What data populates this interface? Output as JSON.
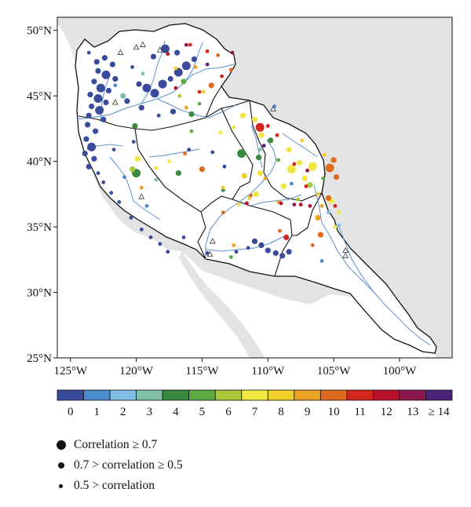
{
  "map": {
    "lat_labels": [
      "50°N",
      "45°N",
      "40°N",
      "35°N",
      "30°N",
      "25°N"
    ],
    "lon_labels": [
      "125°W",
      "120°W",
      "115°W",
      "110°W",
      "105°W",
      "100°W"
    ],
    "lat_values": [
      50,
      45,
      40,
      35,
      30,
      25
    ],
    "lon_values": [
      -125,
      -120,
      -115,
      -110,
      -105,
      -100
    ],
    "extent": {
      "lon": [
        -126,
        -96
      ],
      "lat": [
        25,
        51
      ]
    },
    "colors": {
      "land_outside": "#e3e3e3",
      "ocean": "#ffffff",
      "basin_fill": "#ffffff",
      "basin_outline": "#111111",
      "river": "#5a8fd0"
    }
  },
  "colorbar": {
    "labels": [
      "0",
      "1",
      "2",
      "3",
      "4",
      "5",
      "6",
      "7",
      "8",
      "9",
      "10",
      "11",
      "12",
      "13",
      "≥ 14"
    ],
    "colors": [
      "#3a4b9c",
      "#4a8ccc",
      "#7fbde5",
      "#80bfa6",
      "#3a8a3e",
      "#5cac45",
      "#a8c83a",
      "#f2e640",
      "#f0cf2a",
      "#eaa323",
      "#e06b1e",
      "#d3261c",
      "#b8102a",
      "#8d1850",
      "#4b237a"
    ]
  },
  "legend": {
    "items": [
      {
        "label": "Correlation ≥ 0.7",
        "size": "large"
      },
      {
        "label": "0.7 > correlation ≥ 0.5",
        "size": "medium"
      },
      {
        "label": "0.5 > correlation",
        "size": "small"
      }
    ]
  },
  "chart_data": {
    "type": "scatter",
    "title": "",
    "xlabel": "",
    "ylabel": "",
    "xlim": [
      -126,
      -96
    ],
    "ylim": [
      25,
      51
    ],
    "points": [
      {
        "x": -123.6,
        "y": 48.3,
        "class": 0,
        "size": "small"
      },
      {
        "x": -123.0,
        "y": 47.6,
        "class": 0,
        "size": "medium"
      },
      {
        "x": -122.4,
        "y": 47.9,
        "class": 0,
        "size": "medium"
      },
      {
        "x": -121.8,
        "y": 47.4,
        "class": 0,
        "size": "medium"
      },
      {
        "x": -122.9,
        "y": 46.9,
        "class": 0,
        "size": "medium"
      },
      {
        "x": -122.3,
        "y": 46.6,
        "class": 0,
        "size": "large"
      },
      {
        "x": -121.6,
        "y": 46.3,
        "class": 0,
        "size": "medium"
      },
      {
        "x": -123.2,
        "y": 46.1,
        "class": 0,
        "size": "medium"
      },
      {
        "x": -122.7,
        "y": 45.6,
        "class": 0,
        "size": "large"
      },
      {
        "x": -122.1,
        "y": 45.4,
        "class": 0,
        "size": "medium"
      },
      {
        "x": -123.5,
        "y": 45.1,
        "class": 0,
        "size": "medium"
      },
      {
        "x": -122.9,
        "y": 44.8,
        "class": 0,
        "size": "large"
      },
      {
        "x": -122.3,
        "y": 44.5,
        "class": 0,
        "size": "medium"
      },
      {
        "x": -123.4,
        "y": 44.2,
        "class": 0,
        "size": "medium"
      },
      {
        "x": -122.8,
        "y": 43.9,
        "class": 0,
        "size": "large"
      },
      {
        "x": -123.6,
        "y": 43.5,
        "class": 0,
        "size": "medium"
      },
      {
        "x": -122.5,
        "y": 43.2,
        "class": 0,
        "size": "medium"
      },
      {
        "x": -123.7,
        "y": 42.8,
        "class": 0,
        "size": "medium"
      },
      {
        "x": -123.1,
        "y": 42.3,
        "class": 0,
        "size": "medium"
      },
      {
        "x": -123.8,
        "y": 41.7,
        "class": 0,
        "size": "medium"
      },
      {
        "x": -123.4,
        "y": 41.1,
        "class": 0,
        "size": "large"
      },
      {
        "x": -123.9,
        "y": 40.6,
        "class": 0,
        "size": "medium"
      },
      {
        "x": -123.2,
        "y": 40.2,
        "class": 0,
        "size": "medium"
      },
      {
        "x": -123.6,
        "y": 39.6,
        "class": 0,
        "size": "medium"
      },
      {
        "x": -122.9,
        "y": 39.1,
        "class": 0,
        "size": "small"
      },
      {
        "x": -122.5,
        "y": 38.4,
        "class": 0,
        "size": "small"
      },
      {
        "x": -121.9,
        "y": 37.6,
        "class": 0,
        "size": "small"
      },
      {
        "x": -121.3,
        "y": 36.9,
        "class": 0,
        "size": "small"
      },
      {
        "x": -120.4,
        "y": 35.7,
        "class": 0,
        "size": "small"
      },
      {
        "x": -119.6,
        "y": 34.8,
        "class": 0,
        "size": "small"
      },
      {
        "x": -118.9,
        "y": 34.2,
        "class": 0,
        "size": "small"
      },
      {
        "x": -118.2,
        "y": 33.7,
        "class": 0,
        "size": "small"
      },
      {
        "x": -117.6,
        "y": 33.1,
        "class": 0,
        "size": "small"
      },
      {
        "x": -119.8,
        "y": 45.9,
        "class": 0,
        "size": "medium"
      },
      {
        "x": -119.2,
        "y": 45.6,
        "class": 0,
        "size": "large"
      },
      {
        "x": -118.6,
        "y": 45.2,
        "class": 0,
        "size": "large"
      },
      {
        "x": -118.0,
        "y": 45.9,
        "class": 0,
        "size": "large"
      },
      {
        "x": -117.4,
        "y": 46.3,
        "class": 0,
        "size": "medium"
      },
      {
        "x": -116.8,
        "y": 46.8,
        "class": 0,
        "size": "large"
      },
      {
        "x": -116.2,
        "y": 47.3,
        "class": 0,
        "size": "large"
      },
      {
        "x": -115.6,
        "y": 47.8,
        "class": 0,
        "size": "medium"
      },
      {
        "x": -116.9,
        "y": 48.3,
        "class": 0,
        "size": "medium"
      },
      {
        "x": -117.8,
        "y": 48.6,
        "class": 0,
        "size": "large"
      },
      {
        "x": -118.7,
        "y": 48.0,
        "class": 0,
        "size": "medium"
      },
      {
        "x": -120.3,
        "y": 47.2,
        "class": 0,
        "size": "small"
      },
      {
        "x": -120.7,
        "y": 44.6,
        "class": 0,
        "size": "medium"
      },
      {
        "x": -119.6,
        "y": 44.1,
        "class": 0,
        "size": "medium"
      },
      {
        "x": -118.3,
        "y": 43.5,
        "class": 0,
        "size": "small"
      },
      {
        "x": -117.2,
        "y": 43.8,
        "class": 0,
        "size": "medium"
      },
      {
        "x": -111.0,
        "y": 33.9,
        "class": 0,
        "size": "medium"
      },
      {
        "x": -110.5,
        "y": 33.6,
        "class": 0,
        "size": "medium"
      },
      {
        "x": -110.0,
        "y": 33.2,
        "class": 0,
        "size": "medium"
      },
      {
        "x": -109.4,
        "y": 33.0,
        "class": 0,
        "size": "medium"
      },
      {
        "x": -108.9,
        "y": 32.8,
        "class": 0,
        "size": "medium"
      },
      {
        "x": -108.4,
        "y": 33.1,
        "class": 0,
        "size": "medium"
      },
      {
        "x": -111.5,
        "y": 33.4,
        "class": 0,
        "size": "small"
      },
      {
        "x": -112.4,
        "y": 33.1,
        "class": 0,
        "size": "small"
      },
      {
        "x": -116.4,
        "y": 34.2,
        "class": 0,
        "size": "small"
      },
      {
        "x": -114.6,
        "y": 33.0,
        "class": 0,
        "size": "small"
      },
      {
        "x": -113.3,
        "y": 39.6,
        "class": 0,
        "size": "small"
      },
      {
        "x": -114.2,
        "y": 40.7,
        "class": 0,
        "size": "small"
      },
      {
        "x": -116.0,
        "y": 40.9,
        "class": 0,
        "size": "small"
      },
      {
        "x": -121.7,
        "y": 40.9,
        "class": 0,
        "size": "small"
      },
      {
        "x": -120.2,
        "y": 41.5,
        "class": 0,
        "size": "small"
      },
      {
        "x": -121.6,
        "y": 45.8,
        "class": 1,
        "size": "small"
      },
      {
        "x": -120.9,
        "y": 38.8,
        "class": 1,
        "size": "small"
      },
      {
        "x": -119.2,
        "y": 36.6,
        "class": 1,
        "size": "small"
      },
      {
        "x": -108.2,
        "y": 38.3,
        "class": 1,
        "size": "small"
      },
      {
        "x": -105.9,
        "y": 32.4,
        "class": 1,
        "size": "small"
      },
      {
        "x": -109.5,
        "y": 44.2,
        "class": 1,
        "size": "small"
      },
      {
        "x": -105.4,
        "y": 36.1,
        "class": 2,
        "size": "small"
      },
      {
        "x": -104.6,
        "y": 35.1,
        "class": 2,
        "size": "small"
      },
      {
        "x": -119.5,
        "y": 46.7,
        "class": 3,
        "size": "small"
      },
      {
        "x": -121.0,
        "y": 45.0,
        "class": 3,
        "size": "medium"
      },
      {
        "x": -118.5,
        "y": 38.6,
        "class": 3,
        "size": "small"
      },
      {
        "x": -110.6,
        "y": 40.9,
        "class": 3,
        "size": "small"
      },
      {
        "x": -120.1,
        "y": 42.7,
        "class": 4,
        "size": "medium"
      },
      {
        "x": -120.0,
        "y": 39.1,
        "class": 4,
        "size": "large"
      },
      {
        "x": -116.8,
        "y": 39.1,
        "class": 4,
        "size": "medium"
      },
      {
        "x": -112.0,
        "y": 40.6,
        "class": 4,
        "size": "large"
      },
      {
        "x": -110.7,
        "y": 40.3,
        "class": 4,
        "size": "medium"
      },
      {
        "x": -109.8,
        "y": 41.6,
        "class": 4,
        "size": "medium"
      },
      {
        "x": -115.8,
        "y": 43.6,
        "class": 4,
        "size": "medium"
      },
      {
        "x": -113.4,
        "y": 37.8,
        "class": 4,
        "size": "small"
      },
      {
        "x": -116.4,
        "y": 46.1,
        "class": 5,
        "size": "medium"
      },
      {
        "x": -115.2,
        "y": 44.4,
        "class": 5,
        "size": "small"
      },
      {
        "x": -115.8,
        "y": 42.3,
        "class": 5,
        "size": "small"
      },
      {
        "x": -112.8,
        "y": 32.7,
        "class": 5,
        "size": "small"
      },
      {
        "x": -109.2,
        "y": 40.1,
        "class": 5,
        "size": "small"
      },
      {
        "x": -105.8,
        "y": 38.7,
        "class": 5,
        "size": "small"
      },
      {
        "x": -107.7,
        "y": 37.1,
        "class": 6,
        "size": "small"
      },
      {
        "x": -116.7,
        "y": 45.0,
        "class": 6,
        "size": "small"
      },
      {
        "x": -106.8,
        "y": 38.2,
        "class": 6,
        "size": "medium"
      },
      {
        "x": -120.3,
        "y": 39.4,
        "class": 6,
        "size": "medium"
      },
      {
        "x": -113.6,
        "y": 42.2,
        "class": 7,
        "size": "small"
      },
      {
        "x": -112.6,
        "y": 42.6,
        "class": 7,
        "size": "small"
      },
      {
        "x": -111.9,
        "y": 43.5,
        "class": 7,
        "size": "medium"
      },
      {
        "x": -111.0,
        "y": 43.2,
        "class": 7,
        "size": "medium"
      },
      {
        "x": -110.5,
        "y": 42.0,
        "class": 7,
        "size": "medium"
      },
      {
        "x": -108.4,
        "y": 40.9,
        "class": 7,
        "size": "medium"
      },
      {
        "x": -108.2,
        "y": 39.4,
        "class": 7,
        "size": "large"
      },
      {
        "x": -107.6,
        "y": 39.9,
        "class": 7,
        "size": "medium"
      },
      {
        "x": -107.2,
        "y": 38.7,
        "class": 7,
        "size": "medium"
      },
      {
        "x": -106.6,
        "y": 39.6,
        "class": 7,
        "size": "large"
      },
      {
        "x": -108.8,
        "y": 38.1,
        "class": 7,
        "size": "medium"
      },
      {
        "x": -110.6,
        "y": 39.1,
        "class": 7,
        "size": "medium"
      },
      {
        "x": -110.9,
        "y": 37.5,
        "class": 7,
        "size": "medium"
      },
      {
        "x": -117.5,
        "y": 40.0,
        "class": 7,
        "size": "small"
      },
      {
        "x": -119.9,
        "y": 40.2,
        "class": 7,
        "size": "medium"
      },
      {
        "x": -118.5,
        "y": 39.5,
        "class": 7,
        "size": "small"
      },
      {
        "x": -105.2,
        "y": 37.0,
        "class": 7,
        "size": "medium"
      },
      {
        "x": -104.6,
        "y": 36.1,
        "class": 7,
        "size": "small"
      },
      {
        "x": -104.9,
        "y": 35.0,
        "class": 7,
        "size": "small"
      },
      {
        "x": -112.2,
        "y": 36.7,
        "class": 7,
        "size": "small"
      },
      {
        "x": -111.8,
        "y": 38.9,
        "class": 8,
        "size": "medium"
      },
      {
        "x": -111.4,
        "y": 37.2,
        "class": 8,
        "size": "small"
      },
      {
        "x": -107.4,
        "y": 41.6,
        "class": 8,
        "size": "small"
      },
      {
        "x": -105.7,
        "y": 40.5,
        "class": 8,
        "size": "small"
      },
      {
        "x": -106.2,
        "y": 37.5,
        "class": 8,
        "size": "small"
      },
      {
        "x": -113.4,
        "y": 38.0,
        "class": 8,
        "size": "small"
      },
      {
        "x": -117.0,
        "y": 47.1,
        "class": 8,
        "size": "small"
      },
      {
        "x": -114.9,
        "y": 45.3,
        "class": 8,
        "size": "small"
      },
      {
        "x": -119.6,
        "y": 38.0,
        "class": 9,
        "size": "small"
      },
      {
        "x": -110.2,
        "y": 38.7,
        "class": 9,
        "size": "small"
      },
      {
        "x": -109.2,
        "y": 36.9,
        "class": 9,
        "size": "small"
      },
      {
        "x": -106.2,
        "y": 35.7,
        "class": 9,
        "size": "medium"
      },
      {
        "x": -105.9,
        "y": 36.6,
        "class": 9,
        "size": "small"
      },
      {
        "x": -112.6,
        "y": 33.6,
        "class": 9,
        "size": "small"
      },
      {
        "x": -116.2,
        "y": 44.1,
        "class": 9,
        "size": "small"
      },
      {
        "x": -115.5,
        "y": 47.2,
        "class": 9,
        "size": "small"
      },
      {
        "x": -115.0,
        "y": 39.4,
        "class": 10,
        "size": "medium"
      },
      {
        "x": -116.3,
        "y": 40.6,
        "class": 10,
        "size": "small"
      },
      {
        "x": -113.8,
        "y": 48.1,
        "class": 10,
        "size": "small"
      },
      {
        "x": -112.8,
        "y": 47.0,
        "class": 10,
        "size": "small"
      },
      {
        "x": -114.3,
        "y": 45.8,
        "class": 10,
        "size": "medium"
      },
      {
        "x": -105.3,
        "y": 39.5,
        "class": 10,
        "size": "large"
      },
      {
        "x": -105.0,
        "y": 40.1,
        "class": 10,
        "size": "medium"
      },
      {
        "x": -104.8,
        "y": 38.8,
        "class": 10,
        "size": "medium"
      },
      {
        "x": -105.4,
        "y": 37.2,
        "class": 10,
        "size": "medium"
      },
      {
        "x": -106.0,
        "y": 34.4,
        "class": 10,
        "size": "medium"
      },
      {
        "x": -106.6,
        "y": 33.6,
        "class": 10,
        "size": "small"
      },
      {
        "x": -111.3,
        "y": 37.4,
        "class": 10,
        "size": "small"
      },
      {
        "x": -113.4,
        "y": 36.1,
        "class": 10,
        "size": "small"
      },
      {
        "x": -109.1,
        "y": 34.7,
        "class": 10,
        "size": "small"
      },
      {
        "x": -114.6,
        "y": 48.4,
        "class": 11,
        "size": "small"
      },
      {
        "x": -115.9,
        "y": 48.9,
        "class": 11,
        "size": "small"
      },
      {
        "x": -113.5,
        "y": 46.5,
        "class": 11,
        "size": "small"
      },
      {
        "x": -115.2,
        "y": 45.3,
        "class": 11,
        "size": "small"
      },
      {
        "x": -110.0,
        "y": 42.7,
        "class": 11,
        "size": "small"
      },
      {
        "x": -110.6,
        "y": 42.6,
        "class": 11,
        "size": "large"
      },
      {
        "x": -109.3,
        "y": 42.0,
        "class": 11,
        "size": "small"
      },
      {
        "x": -108.0,
        "y": 39.8,
        "class": 11,
        "size": "small"
      },
      {
        "x": -107.1,
        "y": 38.1,
        "class": 11,
        "size": "small"
      },
      {
        "x": -108.6,
        "y": 34.2,
        "class": 11,
        "size": "medium"
      },
      {
        "x": -104.9,
        "y": 36.6,
        "class": 11,
        "size": "small"
      },
      {
        "x": -109.0,
        "y": 36.8,
        "class": 12,
        "size": "small"
      },
      {
        "x": -107.5,
        "y": 36.7,
        "class": 12,
        "size": "small"
      },
      {
        "x": -106.8,
        "y": 36.6,
        "class": 12,
        "size": "small"
      },
      {
        "x": -111.6,
        "y": 36.8,
        "class": 12,
        "size": "small"
      },
      {
        "x": -117.6,
        "y": 48.2,
        "class": 12,
        "size": "small"
      },
      {
        "x": -117.0,
        "y": 45.6,
        "class": 12,
        "size": "small"
      },
      {
        "x": -107.0,
        "y": 39.3,
        "class": 13,
        "size": "small"
      },
      {
        "x": -116.2,
        "y": 48.9,
        "class": 13,
        "size": "small"
      },
      {
        "x": -112.7,
        "y": 48.3,
        "class": 13,
        "size": "small"
      },
      {
        "x": -108.0,
        "y": 36.7,
        "class": 13,
        "size": "small"
      },
      {
        "x": -114.6,
        "y": 47.4,
        "class": 14,
        "size": "small"
      },
      {
        "x": -110.3,
        "y": 41.2,
        "class": 14,
        "size": "small"
      }
    ],
    "triangles": [
      {
        "x": -121.2,
        "y": 48.3
      },
      {
        "x": -120.0,
        "y": 48.7
      },
      {
        "x": -119.5,
        "y": 48.9
      },
      {
        "x": -121.6,
        "y": 44.5
      },
      {
        "x": -118.2,
        "y": 48.5
      },
      {
        "x": -114.2,
        "y": 33.9
      },
      {
        "x": -114.4,
        "y": 32.9
      },
      {
        "x": -104.1,
        "y": 33.2
      },
      {
        "x": -104.1,
        "y": 32.8
      },
      {
        "x": -119.6,
        "y": 37.3
      },
      {
        "x": -109.6,
        "y": 44.0
      }
    ]
  }
}
